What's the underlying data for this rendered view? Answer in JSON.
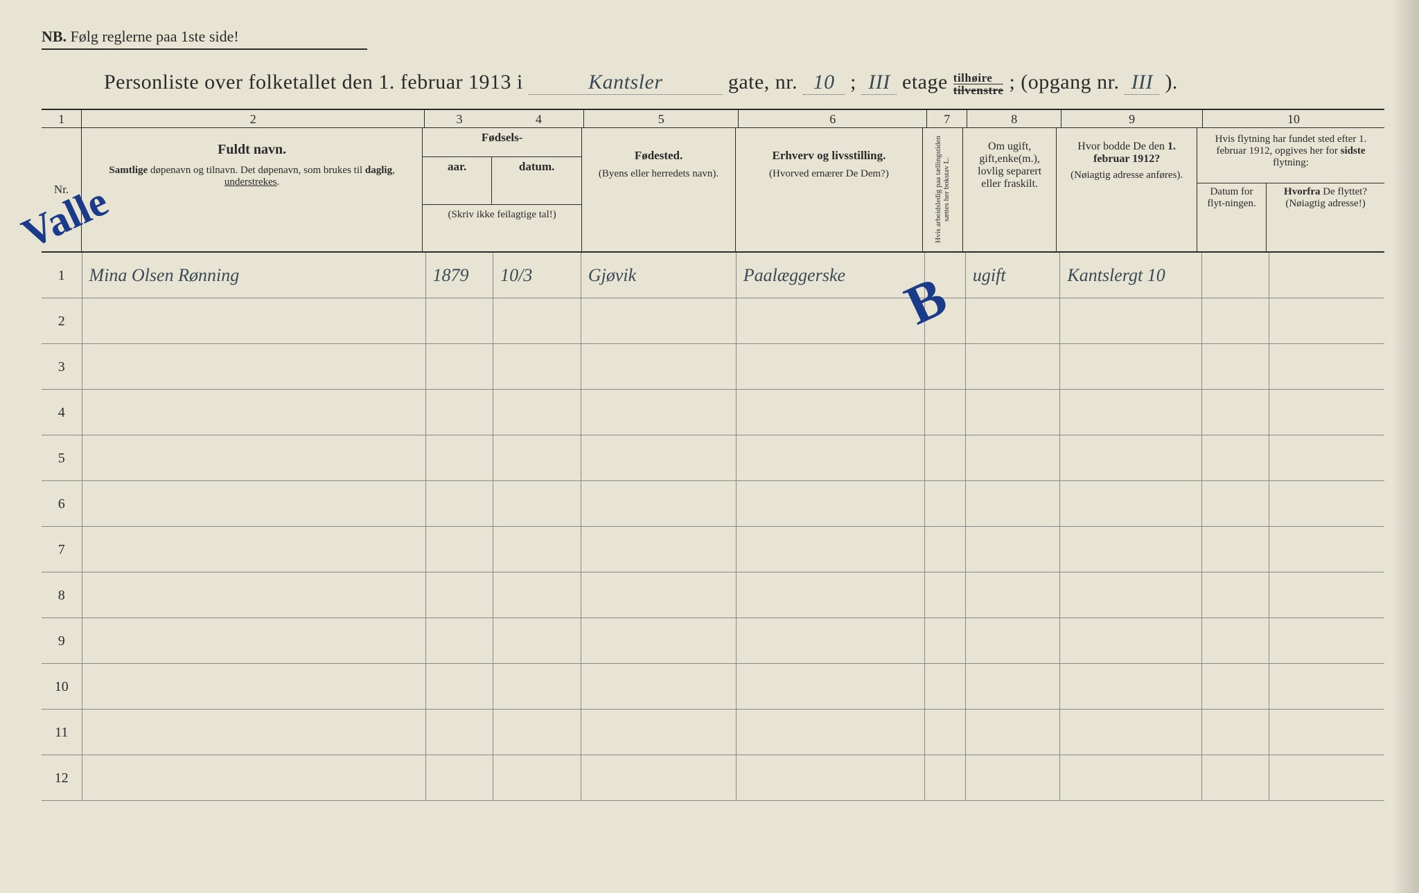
{
  "nb": {
    "label": "NB.",
    "text": "Følg reglerne paa 1ste side!"
  },
  "title": {
    "prefix": "Personliste over folketallet den 1. februar 1913 i",
    "street_hand": "Kantsler",
    "gate_label": "gate, nr.",
    "gate_nr": "10",
    "semicolon": ";",
    "etage_hand": "III",
    "etage_label": "etage",
    "tilhoire": "tilhøire",
    "tilvenstre": "tilvenstre",
    "opgang_label": "(opgang nr.",
    "opgang_nr": "III",
    "close": ")."
  },
  "colnums": [
    "1",
    "2",
    "3",
    "4",
    "5",
    "6",
    "7",
    "8",
    "9",
    "10"
  ],
  "headers": {
    "nr": "Nr.",
    "fuldt": "Fuldt navn.",
    "fuldt_sub": "Samlige døpenavn og tilnavn. Det døpenavn, som brukes til daglig, understrekes.",
    "fodsels": "Fødsels-",
    "aar": "aar.",
    "datum": "datum.",
    "fodsels_note": "(Skriv ikke feilagtige tal!)",
    "fodested": "Fødested.",
    "fodested_sub": "(Byens eller herredets navn).",
    "erhverv": "Erhverv og livsstilling.",
    "erhverv_sub": "(Hvorved ernærer De Dem?)",
    "arbeid": "Hvis arbeidsledig paa tællingstiden sættes her bokstav L.",
    "civil": "Om ugift, gift,enke(m.), lovlig separert eller fraskilt.",
    "bodde": "Hvor bodde De den 1. februar 1912?",
    "bodde_sub": "(Nøiagtig adresse anføres).",
    "flyt": "Hvis flytning har fundet sted efter 1. februar 1912, opgives her for sidste flytning:",
    "flyt_dat": "Datum for flyt-ningen.",
    "flyt_fra": "Hvorfra De flyttet? (Nøiagtig adresse!)"
  },
  "rows": [
    {
      "nr": "1",
      "name": "Mina Olsen Rønning",
      "aar": "1879",
      "datum": "10/3",
      "fodested": "Gjøvik",
      "erhverv": "Paalæggerske",
      "arbeid": "",
      "civil": "ugift",
      "bodde": "Kantslergt 10",
      "flyt_dat": "",
      "flyt_fra": ""
    },
    {
      "nr": "2",
      "name": "",
      "aar": "",
      "datum": "",
      "fodested": "",
      "erhverv": "",
      "arbeid": "",
      "civil": "",
      "bodde": "",
      "flyt_dat": "",
      "flyt_fra": ""
    },
    {
      "nr": "3",
      "name": "",
      "aar": "",
      "datum": "",
      "fodested": "",
      "erhverv": "",
      "arbeid": "",
      "civil": "",
      "bodde": "",
      "flyt_dat": "",
      "flyt_fra": ""
    },
    {
      "nr": "4",
      "name": "",
      "aar": "",
      "datum": "",
      "fodested": "",
      "erhverv": "",
      "arbeid": "",
      "civil": "",
      "bodde": "",
      "flyt_dat": "",
      "flyt_fra": ""
    },
    {
      "nr": "5",
      "name": "",
      "aar": "",
      "datum": "",
      "fodested": "",
      "erhverv": "",
      "arbeid": "",
      "civil": "",
      "bodde": "",
      "flyt_dat": "",
      "flyt_fra": ""
    },
    {
      "nr": "6",
      "name": "",
      "aar": "",
      "datum": "",
      "fodested": "",
      "erhverv": "",
      "arbeid": "",
      "civil": "",
      "bodde": "",
      "flyt_dat": "",
      "flyt_fra": ""
    },
    {
      "nr": "7",
      "name": "",
      "aar": "",
      "datum": "",
      "fodested": "",
      "erhverv": "",
      "arbeid": "",
      "civil": "",
      "bodde": "",
      "flyt_dat": "",
      "flyt_fra": ""
    },
    {
      "nr": "8",
      "name": "",
      "aar": "",
      "datum": "",
      "fodested": "",
      "erhverv": "",
      "arbeid": "",
      "civil": "",
      "bodde": "",
      "flyt_dat": "",
      "flyt_fra": ""
    },
    {
      "nr": "9",
      "name": "",
      "aar": "",
      "datum": "",
      "fodested": "",
      "erhverv": "",
      "arbeid": "",
      "civil": "",
      "bodde": "",
      "flyt_dat": "",
      "flyt_fra": ""
    },
    {
      "nr": "10",
      "name": "",
      "aar": "",
      "datum": "",
      "fodested": "",
      "erhverv": "",
      "arbeid": "",
      "civil": "",
      "bodde": "",
      "flyt_dat": "",
      "flyt_fra": ""
    },
    {
      "nr": "11",
      "name": "",
      "aar": "",
      "datum": "",
      "fodested": "",
      "erhverv": "",
      "arbeid": "",
      "civil": "",
      "bodde": "",
      "flyt_dat": "",
      "flyt_fra": ""
    },
    {
      "nr": "12",
      "name": "",
      "aar": "",
      "datum": "",
      "fodested": "",
      "erhverv": "",
      "arbeid": "",
      "civil": "",
      "bodde": "",
      "flyt_dat": "",
      "flyt_fra": ""
    }
  ],
  "annotations": {
    "mark1": "Valle",
    "mark2": "B"
  },
  "colors": {
    "paper": "#e8e4d4",
    "ink": "#2a2a2a",
    "handwriting": "#3a4a55",
    "blue_pencil": "#1a3a8a",
    "rule_line": "#888888"
  }
}
